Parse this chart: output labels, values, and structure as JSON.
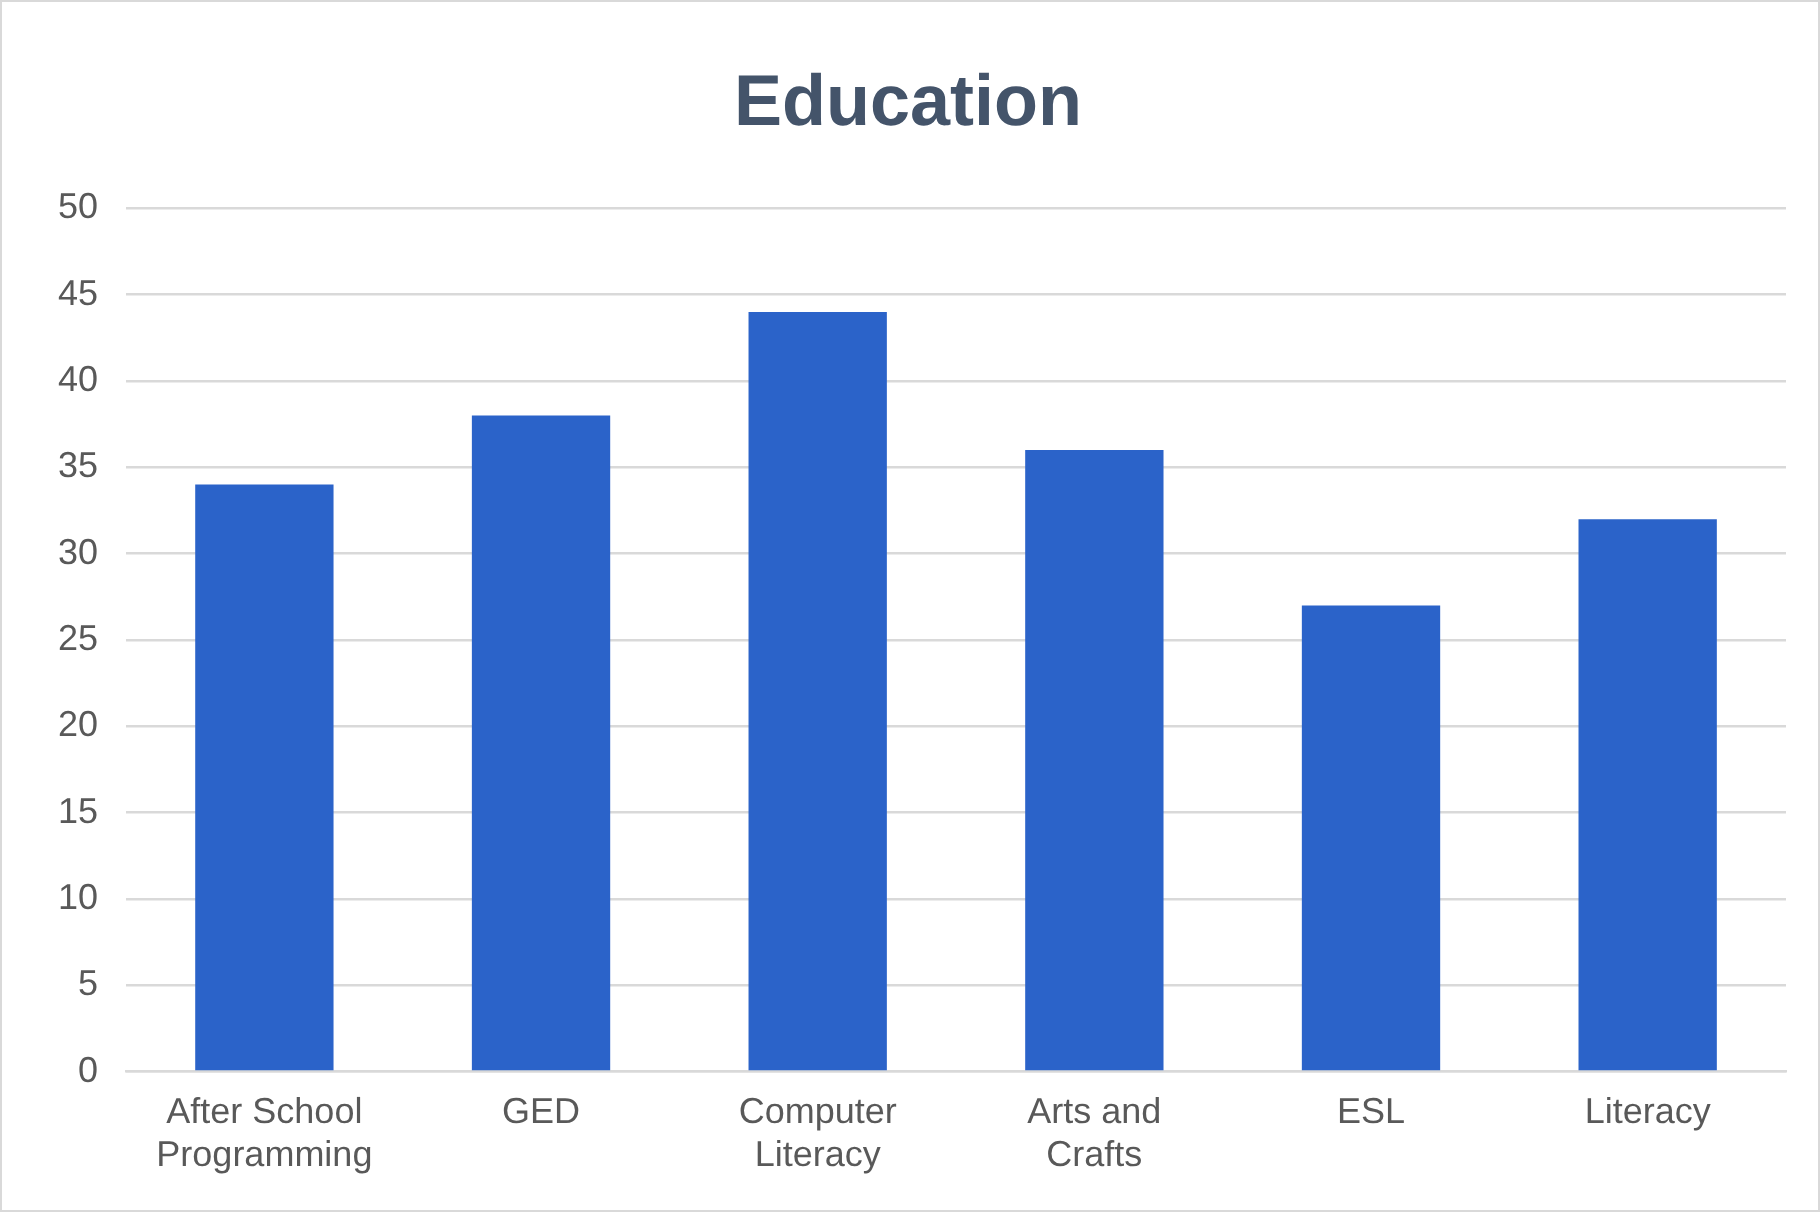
{
  "chart_data": {
    "type": "bar",
    "title": "Education",
    "categories": [
      "After School Programming",
      "GED",
      "Computer Literacy",
      "Arts and Crafts",
      "ESL",
      "Literacy"
    ],
    "values": [
      34,
      38,
      44,
      36,
      27,
      32
    ],
    "color": "#2b63c9",
    "ylim": [
      0,
      50
    ],
    "yticks": [
      0,
      5,
      10,
      15,
      20,
      25,
      30,
      35,
      40,
      45,
      50
    ],
    "grid": "y",
    "legend": false
  }
}
